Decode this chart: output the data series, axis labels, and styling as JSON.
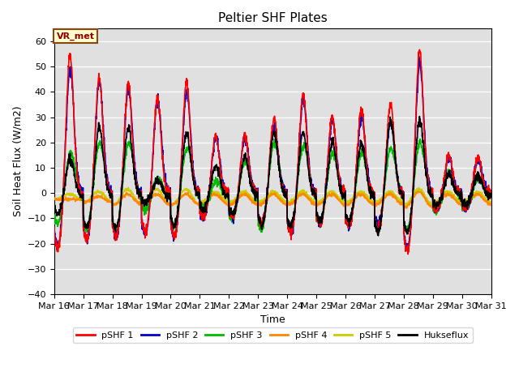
{
  "title": "Peltier SHF Plates",
  "xlabel": "Time",
  "ylabel": "Soil Heat Flux (W/m2)",
  "ylim": [
    -40,
    65
  ],
  "yticks": [
    -40,
    -30,
    -20,
    -10,
    0,
    10,
    20,
    30,
    40,
    50,
    60
  ],
  "xlim": [
    0,
    360
  ],
  "xtick_positions": [
    0,
    24,
    48,
    72,
    96,
    120,
    144,
    168,
    192,
    216,
    240,
    264,
    288,
    312,
    336,
    360
  ],
  "xtick_labels": [
    "Mar 16",
    "Mar 17",
    "Mar 18",
    "Mar 19",
    "Mar 20",
    "Mar 21",
    "Mar 22",
    "Mar 23",
    "Mar 24",
    "Mar 25",
    "Mar 26",
    "Mar 27",
    "Mar 28",
    "Mar 29",
    "Mar 30",
    "Mar 31"
  ],
  "colors": {
    "pSHF1": "#ff0000",
    "pSHF2": "#0000cc",
    "pSHF3": "#00bb00",
    "pSHF4": "#ff8800",
    "pSHF5": "#cccc00",
    "Hukseflux": "#000000"
  },
  "legend_labels": [
    "pSHF 1",
    "pSHF 2",
    "pSHF 3",
    "pSHF 4",
    "pSHF 5",
    "Hukseflux"
  ],
  "annotation_text": "VR_met",
  "background_color": "#e0e0e0",
  "linewidth": 1.2,
  "day_peaks_shf1": [
    55,
    46,
    44,
    38,
    44,
    23,
    23,
    30,
    39,
    31,
    34,
    36,
    57,
    15,
    14,
    8
  ],
  "day_peaks_shf2": [
    49,
    44,
    41,
    37,
    40,
    22,
    22,
    27,
    37,
    29,
    30,
    29,
    51,
    14,
    13,
    7
  ],
  "day_peaks_shf3": [
    18,
    22,
    22,
    8,
    20,
    7,
    15,
    22,
    21,
    18,
    18,
    20,
    22,
    10,
    8,
    5
  ],
  "day_peaks_shf4": [
    0,
    1,
    2,
    2,
    2,
    2,
    2,
    2,
    2,
    2,
    2,
    2,
    3,
    2,
    2,
    1
  ],
  "day_peaks_shf5": [
    1,
    2,
    3,
    3,
    3,
    2,
    2,
    2,
    2,
    2,
    2,
    2,
    3,
    2,
    2,
    1
  ],
  "day_peaks_huk": [
    15,
    27,
    27,
    6,
    25,
    12,
    15,
    25,
    25,
    21,
    21,
    30,
    30,
    8,
    8,
    6
  ]
}
